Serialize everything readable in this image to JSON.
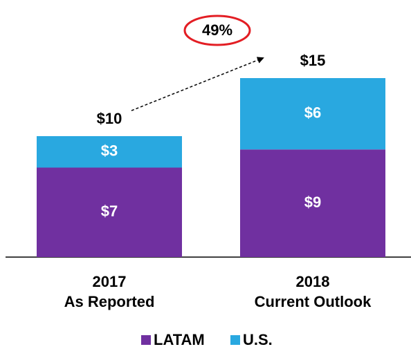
{
  "chart_data": {
    "type": "stacked_bar",
    "categories": [
      "2017\nAs Reported",
      "2018\nCurrent Outlook"
    ],
    "series": [
      {
        "name": "LATAM",
        "color": "#7030a0",
        "values": [
          7.4,
          8.9
        ],
        "value_labels": [
          "$7",
          "$9"
        ]
      },
      {
        "name": "U.S.",
        "color": "#29a8e0",
        "values": [
          2.6,
          5.9
        ],
        "value_labels": [
          "$3",
          "$6"
        ]
      }
    ],
    "totals": [
      10,
      14.8
    ],
    "total_labels": [
      "$10",
      "$15"
    ],
    "annotation": "49%",
    "ylim": [
      0,
      16
    ],
    "legend": "bottom"
  }
}
